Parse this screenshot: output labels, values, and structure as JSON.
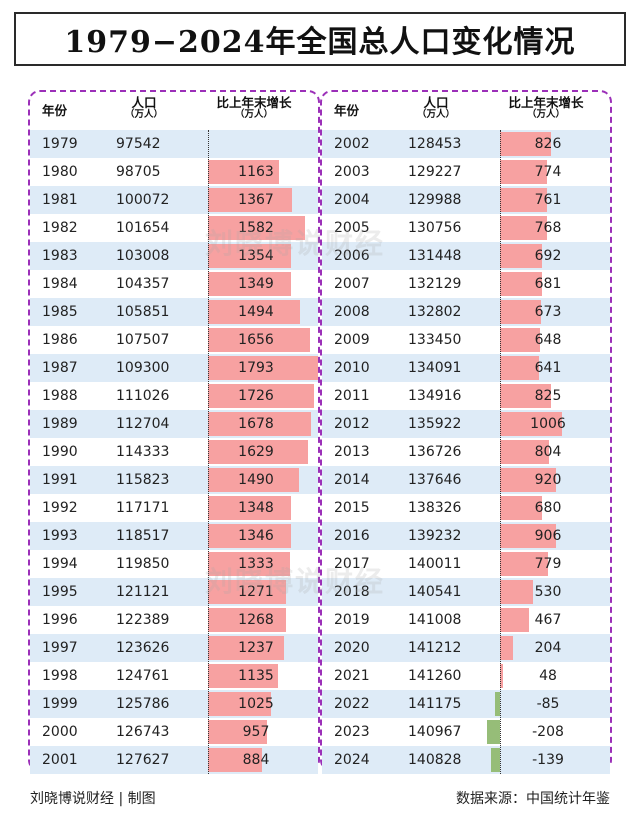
{
  "title": "1979−2024年全国总人口变化情况",
  "headers": {
    "year": "年份",
    "population": "人口",
    "population_unit": "（万人）",
    "growth": "比上年末增长",
    "growth_unit": "（万人）"
  },
  "watermark": "刘晓博说财经",
  "footer": {
    "left": "刘晓博说财经 | 制图",
    "right": "数据来源：中国统计年鉴"
  },
  "colors": {
    "positive_bar": "#f7a1a1",
    "negative_bar": "#96bd78",
    "row_band": "#deebf7",
    "panel_border": "#9b2fb8"
  },
  "chart_data": {
    "type": "table",
    "title": "1979−2024年全国总人口变化情况",
    "columns": [
      "年份",
      "人口（万人）",
      "比上年末增长（万人）"
    ],
    "rows": [
      {
        "year": "1979",
        "population": "97542",
        "growth": null
      },
      {
        "year": "1980",
        "population": "98705",
        "growth": 1163
      },
      {
        "year": "1981",
        "population": "100072",
        "growth": 1367
      },
      {
        "year": "1982",
        "population": "101654",
        "growth": 1582
      },
      {
        "year": "1983",
        "population": "103008",
        "growth": 1354
      },
      {
        "year": "1984",
        "population": "104357",
        "growth": 1349
      },
      {
        "year": "1985",
        "population": "105851",
        "growth": 1494
      },
      {
        "year": "1986",
        "population": "107507",
        "growth": 1656
      },
      {
        "year": "1987",
        "population": "109300",
        "growth": 1793
      },
      {
        "year": "1988",
        "population": "111026",
        "growth": 1726
      },
      {
        "year": "1989",
        "population": "112704",
        "growth": 1678
      },
      {
        "year": "1990",
        "population": "114333",
        "growth": 1629
      },
      {
        "year": "1991",
        "population": "115823",
        "growth": 1490
      },
      {
        "year": "1992",
        "population": "117171",
        "growth": 1348
      },
      {
        "year": "1993",
        "population": "118517",
        "growth": 1346
      },
      {
        "year": "1994",
        "population": "119850",
        "growth": 1333
      },
      {
        "year": "1995",
        "population": "121121",
        "growth": 1271
      },
      {
        "year": "1996",
        "population": "122389",
        "growth": 1268
      },
      {
        "year": "1997",
        "population": "123626",
        "growth": 1237
      },
      {
        "year": "1998",
        "population": "124761",
        "growth": 1135
      },
      {
        "year": "1999",
        "population": "125786",
        "growth": 1025
      },
      {
        "year": "2000",
        "population": "126743",
        "growth": 957
      },
      {
        "year": "2001",
        "population": "127627",
        "growth": 884
      },
      {
        "year": "2002",
        "population": "128453",
        "growth": 826
      },
      {
        "year": "2003",
        "population": "129227",
        "growth": 774
      },
      {
        "year": "2004",
        "population": "129988",
        "growth": 761
      },
      {
        "year": "2005",
        "population": "130756",
        "growth": 768
      },
      {
        "year": "2006",
        "population": "131448",
        "growth": 692
      },
      {
        "year": "2007",
        "population": "132129",
        "growth": 681
      },
      {
        "year": "2008",
        "population": "132802",
        "growth": 673
      },
      {
        "year": "2009",
        "population": "133450",
        "growth": 648
      },
      {
        "year": "2010",
        "population": "134091",
        "growth": 641
      },
      {
        "year": "2011",
        "population": "134916",
        "growth": 825
      },
      {
        "year": "2012",
        "population": "135922",
        "growth": 1006
      },
      {
        "year": "2013",
        "population": "136726",
        "growth": 804
      },
      {
        "year": "2014",
        "population": "137646",
        "growth": 920
      },
      {
        "year": "2015",
        "population": "138326",
        "growth": 680
      },
      {
        "year": "2016",
        "population": "139232",
        "growth": 906
      },
      {
        "year": "2017",
        "population": "140011",
        "growth": 779
      },
      {
        "year": "2018",
        "population": "140541",
        "growth": 530
      },
      {
        "year": "2019",
        "population": "141008",
        "growth": 467
      },
      {
        "year": "2020",
        "population": "141212",
        "growth": 204
      },
      {
        "year": "2021",
        "population": "141260",
        "growth": 48
      },
      {
        "year": "2022",
        "population": "141175",
        "growth": -85
      },
      {
        "year": "2023",
        "population": "140967",
        "growth": -208
      },
      {
        "year": "2024",
        "population": "140828",
        "growth": -139
      }
    ],
    "growth_scale_max": 1793
  }
}
